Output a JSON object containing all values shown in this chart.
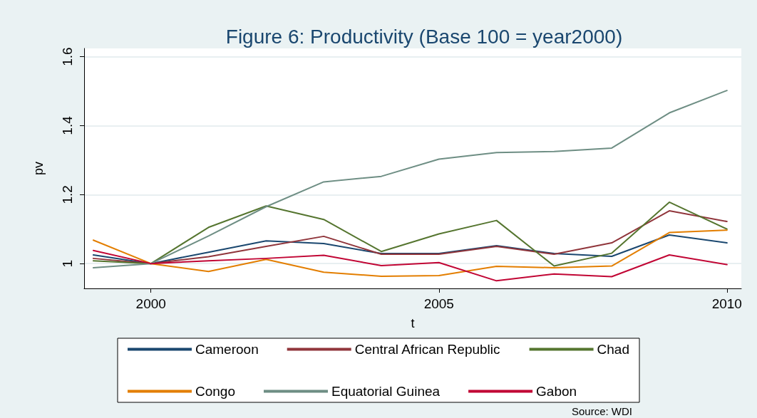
{
  "chart_data": {
    "type": "line",
    "title": "Figure 6: Productivity (Base 100 = year2000)",
    "xlabel": "t",
    "ylabel": "pv",
    "x": [
      1999,
      2000,
      2001,
      2002,
      2003,
      2004,
      2005,
      2006,
      2007,
      2008,
      2009,
      2010
    ],
    "series": [
      {
        "name": "Cameroon",
        "color": "#1a476f",
        "values": [
          1.025,
          1.0,
          1.033,
          1.066,
          1.058,
          1.029,
          1.029,
          1.052,
          1.029,
          1.021,
          1.083,
          1.06
        ]
      },
      {
        "name": "Central African Republic",
        "color": "#90353b",
        "values": [
          1.015,
          1.0,
          1.02,
          1.05,
          1.079,
          1.027,
          1.027,
          1.05,
          1.027,
          1.06,
          1.153,
          1.122
        ]
      },
      {
        "name": "Chad",
        "color": "#55752f",
        "values": [
          1.008,
          1.0,
          1.105,
          1.167,
          1.128,
          1.035,
          1.086,
          1.125,
          0.993,
          1.03,
          1.178,
          1.1
        ]
      },
      {
        "name": "Congo",
        "color": "#e37e00",
        "values": [
          1.068,
          1.0,
          0.977,
          1.012,
          0.975,
          0.963,
          0.965,
          0.992,
          0.988,
          0.993,
          1.09,
          1.097
        ]
      },
      {
        "name": "Equatorial Guinea",
        "color": "#6e8e84",
        "values": [
          0.988,
          1.0,
          1.08,
          1.165,
          1.237,
          1.253,
          1.303,
          1.322,
          1.325,
          1.335,
          1.437,
          1.502
        ]
      },
      {
        "name": "Gabon",
        "color": "#c10534",
        "values": [
          1.038,
          1.0,
          1.008,
          1.015,
          1.024,
          0.994,
          1.003,
          0.95,
          0.97,
          0.962,
          1.025,
          0.997
        ]
      }
    ],
    "xlim": [
      1998.84,
      2010.25
    ],
    "xticks": [
      2000,
      2005,
      2010
    ],
    "ylim": [
      0.928,
      1.624
    ],
    "yticks": [
      {
        "value": 1,
        "label": "1"
      },
      1.2,
      1.4,
      1.6
    ],
    "grid": "y",
    "legend": "bottom",
    "marker": "none",
    "line_style": "solid",
    "annotations": [
      "Source: WDI"
    ]
  }
}
